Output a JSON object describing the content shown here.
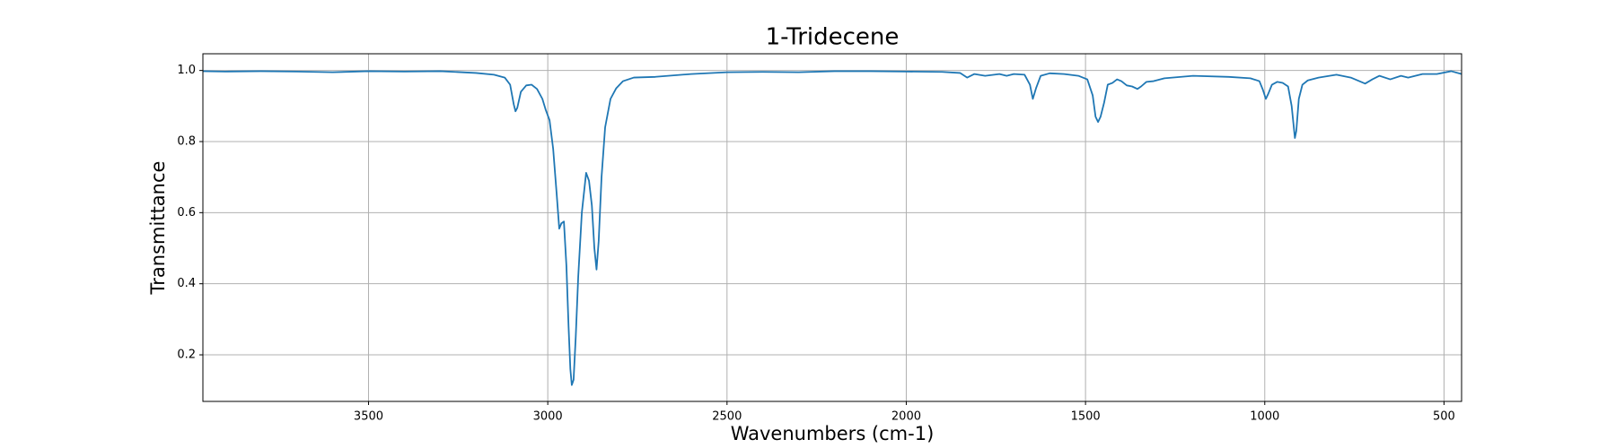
{
  "chart_data": {
    "type": "line",
    "title": "1-Tridecene",
    "x_label": "Wavenumbers (cm-1)",
    "y_label": "Transmittance",
    "x": [
      3962,
      3900,
      3800,
      3700,
      3600,
      3500,
      3400,
      3300,
      3200,
      3150,
      3120,
      3105,
      3095,
      3090,
      3085,
      3075,
      3060,
      3045,
      3030,
      3015,
      3006,
      2995,
      2985,
      2975,
      2968,
      2962,
      2955,
      2948,
      2942,
      2937,
      2933,
      2928,
      2922,
      2915,
      2905,
      2893,
      2885,
      2877,
      2870,
      2864,
      2858,
      2850,
      2840,
      2825,
      2809,
      2790,
      2760,
      2700,
      2600,
      2500,
      2400,
      2300,
      2200,
      2100,
      2000,
      1900,
      1850,
      1830,
      1820,
      1810,
      1780,
      1740,
      1720,
      1700,
      1670,
      1655,
      1647,
      1638,
      1625,
      1600,
      1560,
      1520,
      1495,
      1480,
      1472,
      1465,
      1458,
      1448,
      1438,
      1425,
      1412,
      1400,
      1385,
      1370,
      1355,
      1345,
      1330,
      1310,
      1280,
      1200,
      1100,
      1040,
      1015,
      1005,
      997,
      990,
      980,
      965,
      950,
      935,
      925,
      920,
      916,
      912,
      905,
      895,
      880,
      850,
      800,
      760,
      720,
      700,
      680,
      650,
      620,
      600,
      560,
      520,
      480,
      451
    ],
    "values": [
      0.998,
      0.997,
      0.998,
      0.997,
      0.995,
      0.998,
      0.997,
      0.998,
      0.993,
      0.988,
      0.98,
      0.96,
      0.905,
      0.885,
      0.895,
      0.94,
      0.958,
      0.96,
      0.948,
      0.92,
      0.89,
      0.86,
      0.78,
      0.65,
      0.555,
      0.57,
      0.575,
      0.45,
      0.28,
      0.16,
      0.115,
      0.13,
      0.25,
      0.42,
      0.6,
      0.712,
      0.69,
      0.62,
      0.5,
      0.44,
      0.52,
      0.7,
      0.84,
      0.92,
      0.95,
      0.97,
      0.98,
      0.982,
      0.99,
      0.995,
      0.996,
      0.995,
      0.998,
      0.998,
      0.997,
      0.996,
      0.993,
      0.98,
      0.985,
      0.99,
      0.985,
      0.99,
      0.985,
      0.99,
      0.988,
      0.96,
      0.92,
      0.95,
      0.985,
      0.992,
      0.99,
      0.985,
      0.975,
      0.93,
      0.87,
      0.855,
      0.87,
      0.91,
      0.96,
      0.965,
      0.975,
      0.97,
      0.958,
      0.955,
      0.948,
      0.955,
      0.968,
      0.97,
      0.978,
      0.985,
      0.982,
      0.978,
      0.97,
      0.945,
      0.92,
      0.935,
      0.96,
      0.968,
      0.965,
      0.955,
      0.9,
      0.85,
      0.81,
      0.83,
      0.92,
      0.96,
      0.972,
      0.98,
      0.988,
      0.98,
      0.963,
      0.975,
      0.985,
      0.975,
      0.985,
      0.98,
      0.99,
      0.99,
      0.998,
      0.99
    ],
    "color": "#1f77b4",
    "xlim": [
      3962,
      451
    ],
    "xticks": [
      3500,
      3000,
      2500,
      2000,
      1500,
      1000,
      500
    ],
    "ylim": [
      0.069,
      1.047
    ],
    "yticks": [
      0.2,
      0.4,
      0.6,
      0.8,
      {
        "value": 1,
        "label": "1.0"
      }
    ],
    "grid": true
  }
}
